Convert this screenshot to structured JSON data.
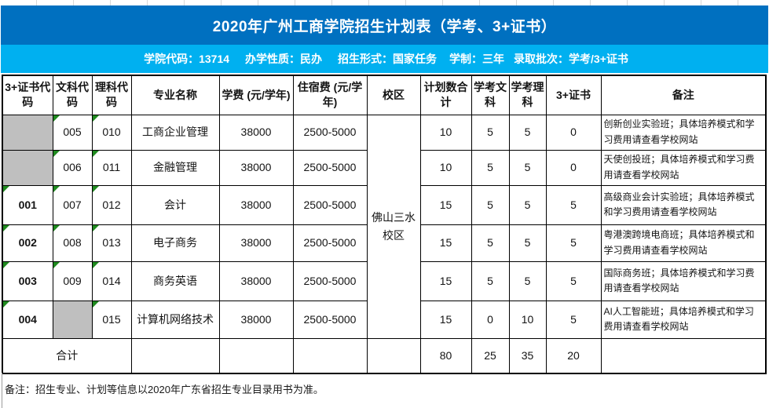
{
  "title": "2020年广州工商学院招生计划表（学考、3+证书）",
  "info_bar": {
    "segments": [
      "学院代码：13714",
      "办学性质：民办",
      "招生形式：国家任务",
      "学制：三年",
      "录取批次：学考/3+证书"
    ]
  },
  "table": {
    "headers": [
      "3+证书代码",
      "文科代码",
      "理科代码",
      "专业名称",
      "学费 (元/学年)",
      "住宿费 (元/学年)",
      "校区",
      "计划数合计",
      "学考文科",
      "学考理科",
      "3+证书",
      "备注"
    ],
    "campus": "佛山三水校区",
    "rows": [
      {
        "cert_code": "",
        "wen_code": "005",
        "li_code": "010",
        "major": "工商企业管理",
        "tuition": "38000",
        "dorm": "2500-5000",
        "plan": "10",
        "xk_wen": "5",
        "xk_li": "5",
        "cert3": "0",
        "note": "创新创业实验班；具体培养模式和学习费用请查看学校网站",
        "gray": [
          "cert_code"
        ]
      },
      {
        "cert_code": "",
        "wen_code": "006",
        "li_code": "011",
        "major": "金融管理",
        "tuition": "38000",
        "dorm": "2500-5000",
        "plan": "10",
        "xk_wen": "5",
        "xk_li": "5",
        "cert3": "0",
        "note": "天使创投班；具体培养模式和学习费用请查看学校网站",
        "gray": [
          "cert_code"
        ]
      },
      {
        "cert_code": "001",
        "wen_code": "007",
        "li_code": "012",
        "major": "会计",
        "tuition": "38000",
        "dorm": "2500-5000",
        "plan": "15",
        "xk_wen": "5",
        "xk_li": "5",
        "cert3": "5",
        "note": "高级商业会计实验班；具体培养模式和学习费用请查看学校网站",
        "gray": []
      },
      {
        "cert_code": "002",
        "wen_code": "008",
        "li_code": "013",
        "major": "电子商务",
        "tuition": "38000",
        "dorm": "2500-5000",
        "plan": "15",
        "xk_wen": "5",
        "xk_li": "5",
        "cert3": "5",
        "note": "粤港澳跨境电商班；具体培养模式和学习费用请查看学校网站",
        "gray": []
      },
      {
        "cert_code": "003",
        "wen_code": "009",
        "li_code": "014",
        "major": "商务英语",
        "tuition": "38000",
        "dorm": "2500-5000",
        "plan": "15",
        "xk_wen": "5",
        "xk_li": "5",
        "cert3": "5",
        "note": "国际商务班；具体培养模式和学习费用请查看学校网站",
        "gray": []
      },
      {
        "cert_code": "004",
        "wen_code": "",
        "li_code": "015",
        "major": "计算机网络技术",
        "tuition": "38000",
        "dorm": "2500-5000",
        "plan": "15",
        "xk_wen": "0",
        "xk_li": "10",
        "cert3": "5",
        "note": "AI人工智能班；具体培养模式和学习费用请查看学校网站",
        "gray": [
          "wen_code"
        ]
      }
    ],
    "total": {
      "label": "合计",
      "plan": "80",
      "xk_wen": "25",
      "xk_li": "35",
      "cert3": "20"
    }
  },
  "footer_note": "备注：招生专业、计划等信息以2020年广东省招生专业目录用书为准。",
  "colors": {
    "title_bar": "#0070C0",
    "info_bar": "#00B0F0",
    "gray_cell": "#BFBFBF",
    "error_triangle": "#1f8a1f"
  }
}
